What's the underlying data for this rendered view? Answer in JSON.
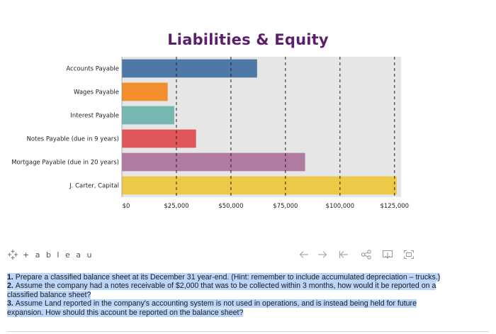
{
  "chart_data": {
    "type": "bar",
    "orientation": "horizontal",
    "title": "Liabilities & Equity",
    "categories": [
      "Accounts Payable",
      "Wages Payable",
      "Interest Payable",
      "Notes Payable (due in 9 years)",
      "Mortgage Payable (due in 20 years)",
      "J. Carter, Capital"
    ],
    "values": [
      62000,
      21000,
      24000,
      34000,
      84000,
      126000
    ],
    "colors": [
      "#4e79a7",
      "#f28e2b",
      "#76b7b2",
      "#e15759",
      "#b07aa1",
      "#edc948"
    ],
    "xlim": [
      0,
      128000
    ],
    "x_ticks": [
      0,
      25000,
      50000,
      75000,
      100000,
      125000
    ],
    "x_tick_labels": [
      "$0",
      "$25,000",
      "$50,000",
      "$75,000",
      "$100,000",
      "$125,000"
    ],
    "xlabel": "",
    "ylabel": "",
    "grid": "vertical dashed",
    "plot_background": "#e6e6e6",
    "title_color": "#5b1f6e"
  },
  "toolbar": {
    "brand": "+ a b l e a u",
    "icons": [
      "back-arrow-icon",
      "forward-arrow-icon",
      "reset-icon",
      "share-icon",
      "download-icon",
      "fullscreen-icon"
    ]
  },
  "questions": [
    {
      "num": "1.",
      "lines": [
        "Prepare a classified balance sheet at its December 31 year-end. (Hint: remember to include accumulated depreciation – trucks.)"
      ]
    },
    {
      "num": "2.",
      "lines": [
        "Assume the company had a notes receivable of $2,000 that was to be collected within 3 months, how would it be reported on a",
        "classified balance sheet?"
      ]
    },
    {
      "num": "3.",
      "lines": [
        "Assume Land reported in the company's accounting system is not used in operations, and is instead being held for future",
        "expansion. How should this account be reported on the balance sheet?"
      ]
    }
  ]
}
